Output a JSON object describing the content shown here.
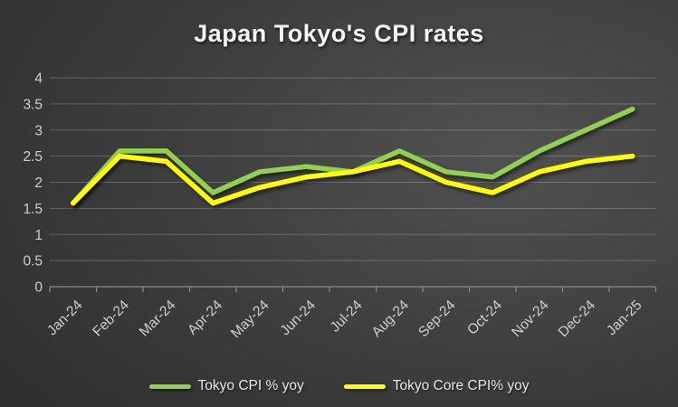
{
  "title": "Japan Tokyo's CPI rates",
  "chart_data": {
    "type": "line",
    "title": "Japan Tokyo's CPI rates",
    "categories": [
      "Jan-24",
      "Feb-24",
      "Mar-24",
      "Apr-24",
      "May-24",
      "Jun-24",
      "Jul-24",
      "Aug-24",
      "Sep-24",
      "Oct-24",
      "Nov-24",
      "Dec-24",
      "Jan-25"
    ],
    "series": [
      {
        "name": "Tokyo CPI % yoy",
        "color": "#92D050",
        "values": [
          1.6,
          2.6,
          2.6,
          1.8,
          2.2,
          2.3,
          2.2,
          2.6,
          2.2,
          2.1,
          2.6,
          3.0,
          3.4
        ]
      },
      {
        "name": "Tokyo Core CPI% yoy",
        "color": "#FFFF00",
        "values": [
          1.6,
          2.5,
          2.4,
          1.6,
          1.9,
          2.1,
          2.2,
          2.4,
          2.0,
          1.8,
          2.2,
          2.4,
          2.5
        ]
      }
    ],
    "xlabel": "",
    "ylabel": "",
    "ylim": [
      0,
      4
    ],
    "yticks": [
      0,
      0.5,
      1,
      1.5,
      2,
      2.5,
      3,
      3.5,
      4
    ],
    "grid": true,
    "x_label_rotation_deg": 45,
    "legend_position": "bottom"
  },
  "style": {
    "background_center": "#4f4f4f",
    "background_edge": "#262626",
    "gridline_color": "rgba(255,255,255,0.22)",
    "axis_color": "#8a8a8a",
    "tick_label_color": "#cfcfcf",
    "title_color": "#f5f5f5",
    "legend_text_color": "#e8e8e8"
  }
}
